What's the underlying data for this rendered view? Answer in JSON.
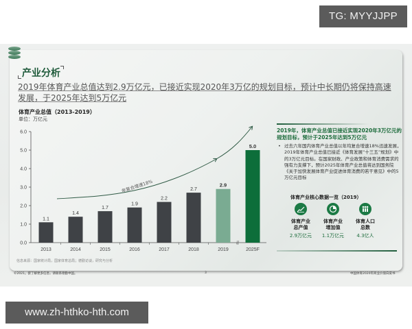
{
  "watermarks": {
    "top": "TG: MYYJJPP",
    "bottom": "www.zh-hthko-hth.com"
  },
  "slide": {
    "section_title": "产业分析",
    "headline": "2019年体育产业总值达到2.9万亿元，已接近实现2020年3万亿的规划目标，预计中长期仍将保持高速发展，于2025年达到5万亿元",
    "chart_title": "体育产业总值（2013-2019）",
    "chart_unit": "单位：万亿元",
    "growth_annotation": "年复合增速18%",
    "source_note": "信息来源：国家统计局，国家体育总局；德勤访谈，研究与分析",
    "footer_left": "©2021。欲了解更多信息，请联系德勤中国。",
    "footer_page": "3",
    "footer_right": "中国体育2020年商业价值白皮书",
    "side": {
      "heading": "2019年，体育产业总值已接近实现2020年3万亿元的规划目标，预计于2025年达到5万亿元",
      "bullet": "过去六年国内体育产业总值以年均复合增速18%迅速发展，2019年体育产业总值已接近《体育发展“十三五”规划》中的3万亿元目标。在国家财政、产业政策和体育消费需求的强有力支撑下，预计2025年体育产业总值将达到国务院《关于加快发展体育产业促进体育消费的若干意见》中的5万亿元目标",
      "bullet_marker": "•",
      "key_data_title": "体育产业核心数据一览（2019）",
      "key_data": [
        {
          "icon": "growth-chart-icon",
          "label_line1": "体育产业",
          "label_line2": "总产值",
          "value": "2.9万亿元"
        },
        {
          "icon": "pie-chart-icon",
          "label_line1": "体育产业",
          "label_line2": "增加值",
          "value": "1.1万亿元"
        },
        {
          "icon": "people-icon",
          "label_line1": "体育人口",
          "label_line2": "总数",
          "value": "4.3亿人"
        }
      ]
    }
  },
  "chart_data": {
    "type": "bar",
    "title": "体育产业总值（2013-2019）",
    "subtitle": "单位：万亿元",
    "categories": [
      "2013",
      "2014",
      "2015",
      "2016",
      "2017",
      "2018",
      "2019",
      "2025F"
    ],
    "values": [
      1.1,
      1.4,
      1.7,
      1.9,
      2.2,
      2.7,
      2.9,
      5.0
    ],
    "value_labels": [
      "1.1",
      "1.4",
      "1.7",
      "1.9",
      "2.2",
      "2.7",
      "2.9",
      "5.0"
    ],
    "bar_colors": [
      "#3f4246",
      "#3f4246",
      "#3f4246",
      "#3f4246",
      "#3f4246",
      "#3f4246",
      "#7aab92",
      "#0d6e3a"
    ],
    "xlabel": "",
    "ylabel": "万亿元",
    "ylim": [
      0,
      6
    ],
    "yticks": [
      "0.0",
      "1.0",
      "2.0",
      "3.0",
      "4.0",
      "5.0",
      "6.0"
    ],
    "annotation": "年复合增速18%",
    "axis_break_between": [
      "2019",
      "2025F"
    ],
    "grid": false,
    "legend": null
  }
}
